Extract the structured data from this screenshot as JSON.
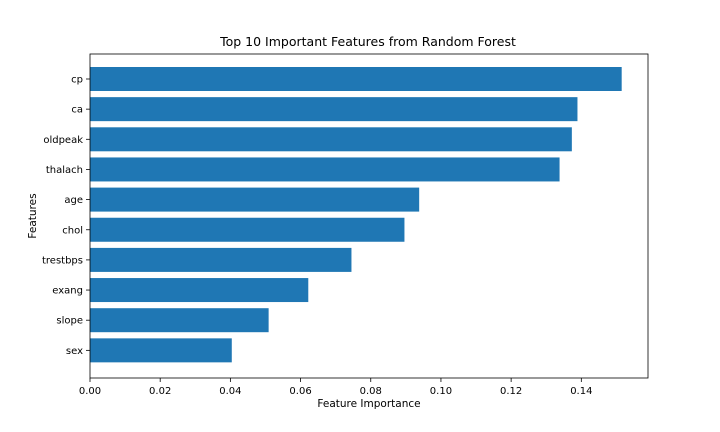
{
  "chart_data": {
    "type": "bar",
    "orientation": "horizontal",
    "title": "Top 10 Important Features from Random Forest",
    "xlabel": "Feature Importance",
    "ylabel": "Features",
    "categories": [
      "cp",
      "ca",
      "oldpeak",
      "thalach",
      "age",
      "chol",
      "trestbps",
      "exang",
      "slope",
      "sex"
    ],
    "values": [
      0.1515,
      0.1389,
      0.1373,
      0.1338,
      0.0938,
      0.0896,
      0.0745,
      0.0622,
      0.0509,
      0.0404
    ],
    "xlim": [
      0,
      0.159
    ],
    "xticks": [
      "0.00",
      "0.02",
      "0.04",
      "0.06",
      "0.08",
      "0.10",
      "0.12",
      "0.14"
    ],
    "bar_color": "#1f77b4",
    "grid": false,
    "legend": "none"
  }
}
